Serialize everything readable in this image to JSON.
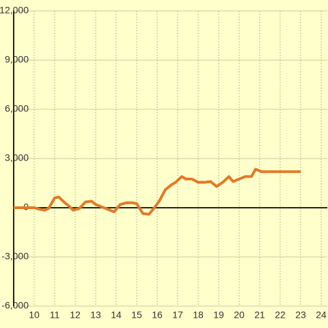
{
  "chart_data": {
    "type": "line",
    "x": [
      9,
      10,
      10.3,
      10.5,
      10.7,
      11,
      11.2,
      11.5,
      11.7,
      11.9,
      12.2,
      12.5,
      12.8,
      13,
      13.3,
      13.6,
      13.9,
      14.2,
      14.5,
      14.8,
      15,
      15.3,
      15.6,
      15.8,
      16.1,
      16.4,
      16.7,
      16.9,
      17.2,
      17.4,
      17.7,
      18,
      18.3,
      18.6,
      18.9,
      19.2,
      19.5,
      19.7,
      20,
      20.3,
      20.6,
      20.8,
      21.1,
      21.5,
      23
    ],
    "series": [
      {
        "color": "#e07b28",
        "values": [
          0,
          0,
          -100,
          -150,
          -50,
          600,
          650,
          300,
          100,
          -150,
          -50,
          350,
          400,
          200,
          50,
          -100,
          -250,
          200,
          300,
          300,
          250,
          -350,
          -400,
          -100,
          400,
          1100,
          1400,
          1550,
          1900,
          1750,
          1750,
          1550,
          1550,
          1600,
          1300,
          1550,
          1900,
          1600,
          1750,
          1900,
          1900,
          2350,
          2200,
          2200,
          2200
        ]
      }
    ],
    "xlim": [
      9,
      24.3
    ],
    "ylim": [
      -6000,
      12000
    ],
    "xticks": [
      10,
      11,
      12,
      13,
      14,
      15,
      16,
      17,
      18,
      19,
      20,
      21,
      22,
      23,
      24
    ],
    "yticks": [
      {
        "value": -6000,
        "label": "-6,000"
      },
      {
        "value": -3000,
        "label": "-3,000"
      },
      0,
      {
        "value": 3000,
        "label": "3,000"
      },
      {
        "value": 6000,
        "label": "6,000"
      },
      {
        "value": 9000,
        "label": "9,000"
      },
      {
        "value": 12000,
        "label": "12,000"
      }
    ],
    "grid": true
  }
}
